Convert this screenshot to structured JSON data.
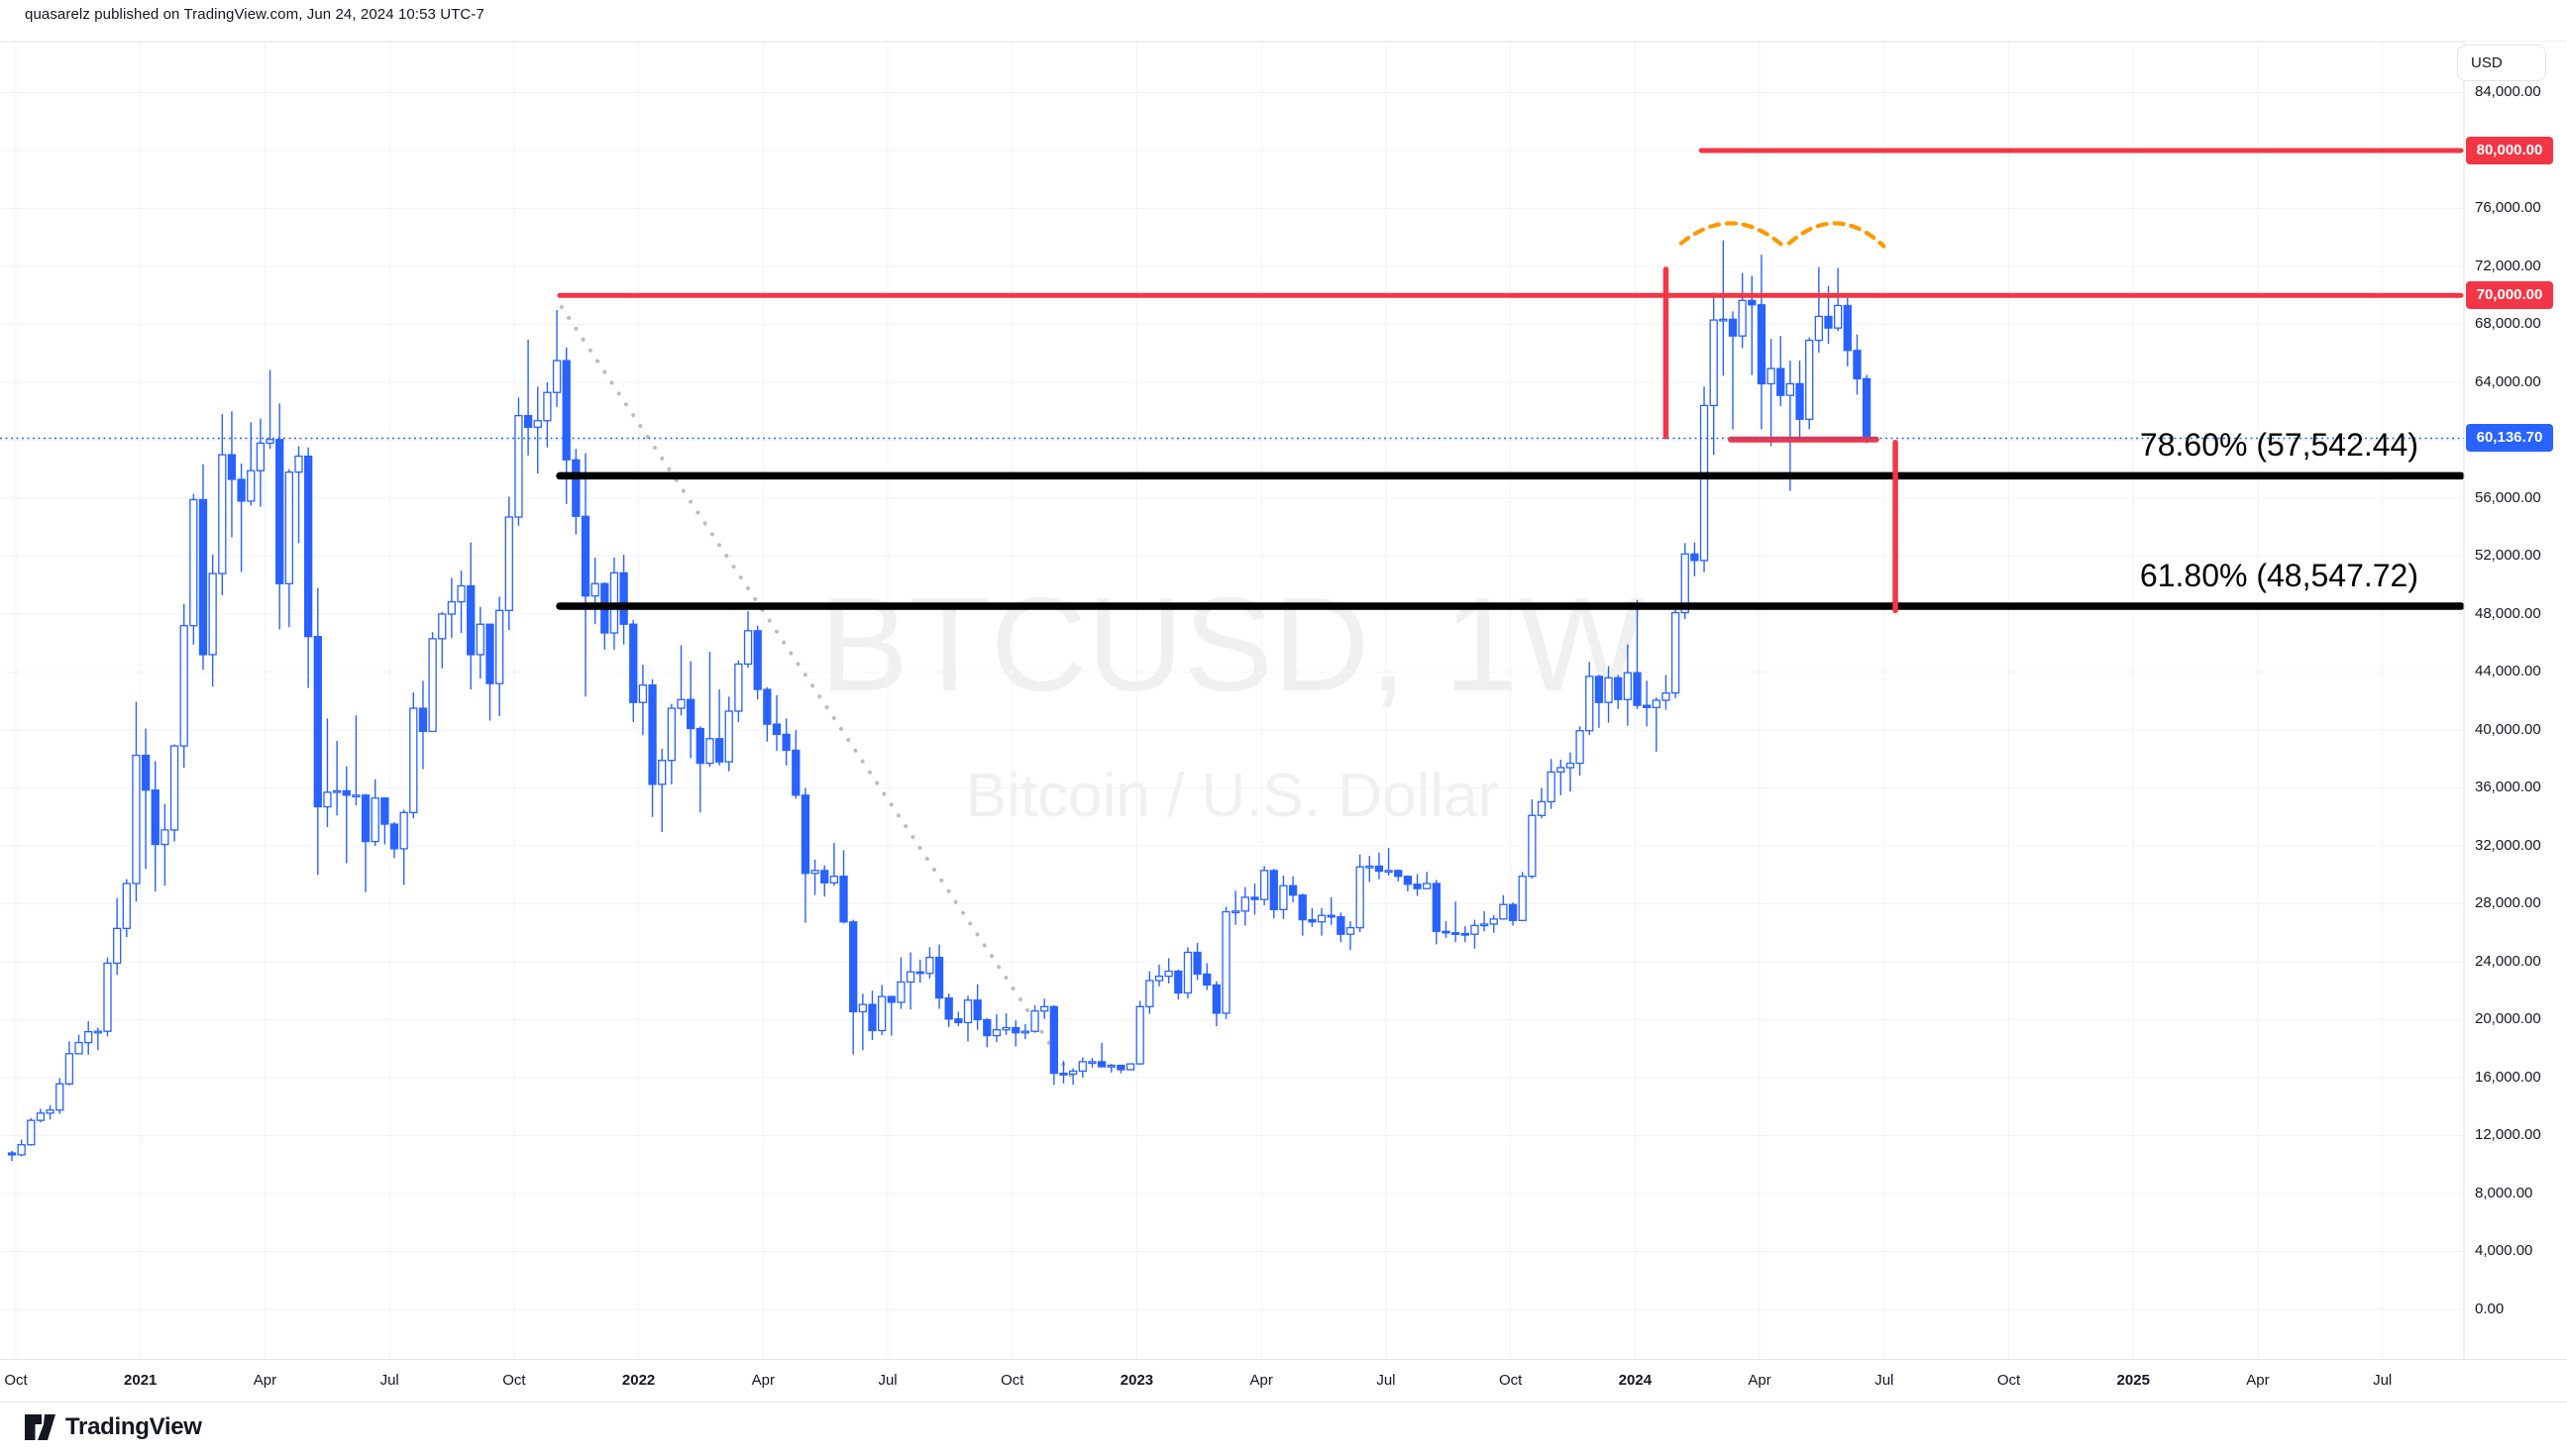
{
  "header": {
    "publish_line": "quasarelz published on TradingView.com, Jun 24, 2024 10:53 UTC-7"
  },
  "watermark": {
    "line1": "BTCUSD, 1W",
    "line2": "Bitcoin / U.S. Dollar"
  },
  "logo": {
    "text": "TradingView"
  },
  "price_axis": {
    "currency_button": "USD",
    "tick_labels": [
      "84,000.00",
      "80,000.00",
      "76,000.00",
      "72,000.00",
      "68,000.00",
      "64,000.00",
      "60,000.00",
      "56,000.00",
      "52,000.00",
      "48,000.00",
      "44,000.00",
      "40,000.00",
      "36,000.00",
      "32,000.00",
      "28,000.00",
      "24,000.00",
      "20,000.00",
      "16,000.00",
      "12,000.00",
      "8,000.00",
      "4,000.00",
      "0.00"
    ],
    "tick_top_price": 84000,
    "tick_step": 4000,
    "level_80k_label": "80,000.00",
    "level_70k_label": "70,000.00",
    "current_price_label": "60,136.70"
  },
  "time_axis": {
    "labels": [
      {
        "text": "Oct",
        "year": false
      },
      {
        "text": "2021",
        "year": true
      },
      {
        "text": "Apr",
        "year": false
      },
      {
        "text": "Jul",
        "year": false
      },
      {
        "text": "Oct",
        "year": false
      },
      {
        "text": "2022",
        "year": true
      },
      {
        "text": "Apr",
        "year": false
      },
      {
        "text": "Jul",
        "year": false
      },
      {
        "text": "Oct",
        "year": false
      },
      {
        "text": "2023",
        "year": true
      },
      {
        "text": "Apr",
        "year": false
      },
      {
        "text": "Jul",
        "year": false
      },
      {
        "text": "Oct",
        "year": false
      },
      {
        "text": "2024",
        "year": true
      },
      {
        "text": "Apr",
        "year": false
      },
      {
        "text": "Jul",
        "year": false
      },
      {
        "text": "Oct",
        "year": false
      },
      {
        "text": "2025",
        "year": true
      },
      {
        "text": "Apr",
        "year": false
      },
      {
        "text": "Jul",
        "year": false
      }
    ]
  },
  "annotations": {
    "fib_786": {
      "label": "78.60% (57,542.44)",
      "price": 57542.44
    },
    "fib_618": {
      "label": "61.80% (48,547.72)",
      "price": 48547.72
    },
    "resistance_80k": {
      "price": 80000,
      "from_week": 176.7
    },
    "resistance_70k": {
      "price": 70000,
      "from_week": 57.3
    },
    "current_price": {
      "price": 60136.7
    },
    "projection_v1": {
      "week": 173,
      "from_price": 71800,
      "to_price": 60250
    },
    "projection_v2": {
      "week": 197,
      "from_price": 59850,
      "to_price": 48250
    },
    "support_segment": {
      "price": 60050,
      "from_week": 179.8,
      "to_week": 195
    },
    "trend_dotted": {
      "from_week": 57.5,
      "from_price": 69200,
      "to_week": 111,
      "to_price": 15900
    },
    "double_top_arcs": {
      "arc1_from_week": 174.6,
      "arc1_to_week": 185.3,
      "arc2_from_week": 185.9,
      "arc2_to_week": 195.8,
      "base_price": 73600,
      "peak_price": 75500
    }
  },
  "colors": {
    "accent_blue": "#2962ff",
    "alert_red": "#f23645",
    "drawing_black": "#000000",
    "arc_orange": "#ff9800",
    "grid": "#f0f3fa",
    "frame": "#e0e3eb",
    "text": "#131722",
    "trend_dots": "#b9bdc9",
    "candle_up_fill": "#ffffff",
    "candle_down_fill": "#2962ff"
  },
  "chart_data": {
    "type": "candlestick",
    "symbol": "BTCUSD",
    "interval": "1W",
    "title": "BTCUSD, 1W",
    "subtitle": "Bitcoin / U.S. Dollar",
    "grid": true,
    "ylim": [
      -3419,
      87521
    ],
    "y_tick_step": 4000,
    "x_tick_labels": [
      "Oct",
      "2021",
      "Apr",
      "Jul",
      "Oct",
      "2022",
      "Apr",
      "Jul",
      "Oct",
      "2023",
      "Apr",
      "Jul",
      "Oct",
      "2024",
      "Apr",
      "Jul",
      "Oct",
      "2025",
      "Apr",
      "Jul"
    ],
    "ohlc": [
      [
        10800,
        10950,
        10250,
        10670
      ],
      [
        10670,
        11720,
        10570,
        11370
      ],
      [
        11370,
        13200,
        11300,
        13050
      ],
      [
        13050,
        13850,
        12900,
        13550
      ],
      [
        13550,
        14100,
        13100,
        13760
      ],
      [
        13760,
        15970,
        13500,
        15570
      ],
      [
        15570,
        18500,
        15460,
        17650
      ],
      [
        17650,
        18960,
        17610,
        18420
      ],
      [
        18420,
        19900,
        17580,
        19170
      ],
      [
        19170,
        19450,
        17900,
        19200
      ],
      [
        19200,
        24300,
        18850,
        23900
      ],
      [
        23900,
        28400,
        23100,
        26300
      ],
      [
        26300,
        29700,
        25700,
        29400
      ],
      [
        29400,
        41950,
        28150,
        38250
      ],
      [
        38250,
        40100,
        30400,
        35850
      ],
      [
        35850,
        37850,
        28850,
        32100
      ],
      [
        32100,
        34900,
        29250,
        33100
      ],
      [
        33100,
        39000,
        32300,
        38900
      ],
      [
        38900,
        48700,
        37400,
        47200
      ],
      [
        47200,
        56300,
        45900,
        55900
      ],
      [
        55900,
        58350,
        44150,
        45200
      ],
      [
        45200,
        52100,
        43000,
        50800
      ],
      [
        50800,
        61800,
        49300,
        59000
      ],
      [
        59000,
        62000,
        53300,
        57300
      ],
      [
        57300,
        58400,
        50900,
        55800
      ],
      [
        55800,
        61250,
        55500,
        57900
      ],
      [
        57900,
        61500,
        55400,
        59800
      ],
      [
        59800,
        64850,
        59400,
        60050
      ],
      [
        60050,
        62550,
        46950,
        50100
      ],
      [
        50100,
        58000,
        47100,
        57800
      ],
      [
        57800,
        59600,
        52900,
        58900
      ],
      [
        58900,
        59500,
        42900,
        46450
      ],
      [
        46450,
        49800,
        30000,
        34700
      ],
      [
        34700,
        40800,
        33300,
        35700
      ],
      [
        35700,
        39250,
        34100,
        35800
      ],
      [
        35800,
        37500,
        30800,
        35500
      ],
      [
        35500,
        41000,
        34800,
        35500
      ],
      [
        35500,
        35600,
        28800,
        32300
      ],
      [
        32300,
        36600,
        32000,
        35300
      ],
      [
        35300,
        35350,
        32100,
        33500
      ],
      [
        33500,
        33650,
        31150,
        31800
      ],
      [
        31800,
        34500,
        29300,
        34300
      ],
      [
        34300,
        42600,
        33900,
        41500
      ],
      [
        41500,
        43400,
        37300,
        39900
      ],
      [
        39900,
        46750,
        39900,
        46300
      ],
      [
        46300,
        48150,
        44250,
        48000
      ],
      [
        48000,
        50500,
        46350,
        48850
      ],
      [
        48850,
        51000,
        46700,
        49950
      ],
      [
        49950,
        52950,
        42800,
        45200
      ],
      [
        45200,
        48500,
        43550,
        47300
      ],
      [
        47300,
        47350,
        40650,
        43200
      ],
      [
        43200,
        49200,
        40950,
        48250
      ],
      [
        48250,
        56100,
        46900,
        54700
      ],
      [
        54700,
        62950,
        54100,
        61700
      ],
      [
        61700,
        66950,
        58950,
        60900
      ],
      [
        60900,
        63700,
        57700,
        61350
      ],
      [
        61350,
        64000,
        59500,
        63300
      ],
      [
        63300,
        69000,
        62300,
        65500
      ],
      [
        65500,
        66400,
        55600,
        58650
      ],
      [
        58650,
        59400,
        53500,
        54750
      ],
      [
        54750,
        59100,
        42300,
        49250
      ],
      [
        49250,
        51900,
        47300,
        50100
      ],
      [
        50100,
        50200,
        45550,
        46700
      ],
      [
        46700,
        51900,
        45550,
        50850
      ],
      [
        50850,
        52100,
        45900,
        47300
      ],
      [
        47300,
        47600,
        40550,
        41900
      ],
      [
        41900,
        44500,
        39650,
        43100
      ],
      [
        43100,
        43500,
        34000,
        36250
      ],
      [
        36250,
        38700,
        32950,
        37900
      ],
      [
        37900,
        41800,
        36250,
        41500
      ],
      [
        41500,
        45850,
        41000,
        42100
      ],
      [
        42100,
        44750,
        38050,
        40100
      ],
      [
        40100,
        40250,
        34300,
        37700
      ],
      [
        37700,
        45400,
        37450,
        39400
      ],
      [
        39400,
        42800,
        37550,
        37800
      ],
      [
        37800,
        42300,
        37150,
        41300
      ],
      [
        41300,
        44800,
        40550,
        44550
      ],
      [
        44550,
        48200,
        44300,
        46850
      ],
      [
        46850,
        47200,
        42100,
        42800
      ],
      [
        42800,
        42950,
        39200,
        40400
      ],
      [
        40400,
        42400,
        38550,
        39700
      ],
      [
        39700,
        40800,
        37550,
        38600
      ],
      [
        38600,
        40000,
        35250,
        35500
      ],
      [
        35500,
        36000,
        26700,
        30100
      ],
      [
        30100,
        31050,
        28600,
        30300
      ],
      [
        30300,
        30650,
        28500,
        29450
      ],
      [
        29450,
        32200,
        29250,
        29900
      ],
      [
        29900,
        31700,
        26650,
        26750
      ],
      [
        26750,
        26900,
        17600,
        20550
      ],
      [
        20550,
        21800,
        17900,
        21050
      ],
      [
        21050,
        22000,
        18600,
        19250
      ],
      [
        19250,
        22400,
        18950,
        21600
      ],
      [
        21600,
        21650,
        18900,
        21200
      ],
      [
        21200,
        24300,
        20750,
        22600
      ],
      [
        22600,
        24650,
        20700,
        23300
      ],
      [
        23300,
        24150,
        22550,
        23200
      ],
      [
        23200,
        25000,
        22850,
        24300
      ],
      [
        24300,
        25200,
        20750,
        21500
      ],
      [
        21500,
        21800,
        19500,
        20050
      ],
      [
        20050,
        20550,
        19550,
        19800
      ],
      [
        19800,
        21650,
        18500,
        21350
      ],
      [
        21350,
        22450,
        19300,
        20000
      ],
      [
        20000,
        20100,
        18100,
        18900
      ],
      [
        18900,
        20380,
        18450,
        19300
      ],
      [
        19300,
        20450,
        18950,
        19450
      ],
      [
        19450,
        19950,
        18150,
        19100
      ],
      [
        19100,
        19700,
        18650,
        19200
      ],
      [
        19200,
        21000,
        19100,
        20600
      ],
      [
        20600,
        21450,
        20050,
        20900
      ],
      [
        20900,
        21000,
        15500,
        16300
      ],
      [
        16300,
        17150,
        15600,
        16250
      ],
      [
        16250,
        16650,
        15500,
        16450
      ],
      [
        16450,
        17400,
        16000,
        17100
      ],
      [
        17100,
        17350,
        16700,
        17100
      ],
      [
        17100,
        18400,
        16900,
        16750
      ],
      [
        16750,
        16950,
        16350,
        16850
      ],
      [
        16850,
        16850,
        16300,
        16550
      ],
      [
        16550,
        17000,
        16500,
        16950
      ],
      [
        16950,
        21300,
        16900,
        20900
      ],
      [
        20900,
        23350,
        20400,
        22700
      ],
      [
        22700,
        23800,
        22300,
        23000
      ],
      [
        23000,
        24250,
        22500,
        23350
      ],
      [
        23350,
        23450,
        21400,
        21850
      ],
      [
        21850,
        25000,
        21450,
        24650
      ],
      [
        24650,
        25300,
        22750,
        23150
      ],
      [
        23150,
        23900,
        22050,
        22400
      ],
      [
        22400,
        22650,
        19550,
        20450
      ],
      [
        20450,
        27800,
        20050,
        27450
      ],
      [
        27450,
        28900,
        26550,
        27500
      ],
      [
        27500,
        29150,
        26500,
        28450
      ],
      [
        28450,
        29400,
        27250,
        28300
      ],
      [
        28300,
        30600,
        27900,
        30300
      ],
      [
        30300,
        30400,
        27000,
        27600
      ],
      [
        27600,
        29950,
        26950,
        29250
      ],
      [
        29250,
        29900,
        28100,
        28600
      ],
      [
        28600,
        28700,
        25800,
        26900
      ],
      [
        26900,
        27700,
        26400,
        26750
      ],
      [
        26750,
        27700,
        25800,
        27200
      ],
      [
        27200,
        28450,
        26550,
        27100
      ],
      [
        27100,
        27400,
        25350,
        25900
      ],
      [
        25900,
        26800,
        24800,
        26350
      ],
      [
        26350,
        31400,
        26050,
        30550
      ],
      [
        30550,
        31300,
        29500,
        30600
      ],
      [
        30600,
        31550,
        29700,
        30250
      ],
      [
        30250,
        31850,
        29950,
        30300
      ],
      [
        30300,
        30350,
        29550,
        29900
      ],
      [
        29900,
        29950,
        28850,
        29350
      ],
      [
        29350,
        30050,
        28550,
        29050
      ],
      [
        29050,
        30200,
        29000,
        29400
      ],
      [
        29400,
        29650,
        25200,
        26100
      ],
      [
        26100,
        26800,
        25650,
        26000
      ],
      [
        26000,
        28150,
        25350,
        25950
      ],
      [
        25950,
        26450,
        25350,
        25900
      ],
      [
        25900,
        26900,
        24900,
        26500
      ],
      [
        26500,
        27500,
        26100,
        26600
      ],
      [
        26600,
        27200,
        26000,
        26950
      ],
      [
        26950,
        28600,
        26900,
        27950
      ],
      [
        27950,
        28100,
        26500,
        26850
      ],
      [
        26850,
        30200,
        26800,
        29900
      ],
      [
        29900,
        35200,
        29750,
        34100
      ],
      [
        34100,
        36000,
        33900,
        35050
      ],
      [
        35050,
        38000,
        34550,
        37100
      ],
      [
        37100,
        37950,
        35500,
        37400
      ],
      [
        37400,
        38450,
        35750,
        37700
      ],
      [
        37700,
        40250,
        36850,
        39950
      ],
      [
        39950,
        44700,
        39650,
        43700
      ],
      [
        43700,
        43800,
        40150,
        41900
      ],
      [
        41900,
        44400,
        40500,
        43600
      ],
      [
        43600,
        43800,
        41450,
        42100
      ],
      [
        42100,
        45900,
        40300,
        43950
      ],
      [
        43950,
        48970,
        41450,
        41700
      ],
      [
        41700,
        43400,
        40250,
        41550
      ],
      [
        41550,
        42250,
        38500,
        42050
      ],
      [
        42050,
        43800,
        41400,
        42550
      ],
      [
        42550,
        48600,
        42200,
        48100
      ],
      [
        48100,
        52900,
        47650,
        52150
      ],
      [
        52150,
        52950,
        50600,
        51700
      ],
      [
        51700,
        63700,
        50900,
        62400
      ],
      [
        62400,
        70200,
        59000,
        68300
      ],
      [
        68300,
        73800,
        64450,
        68350
      ],
      [
        68350,
        68900,
        60750,
        67200
      ],
      [
        67200,
        71550,
        66350,
        69650
      ],
      [
        69650,
        71350,
        64500,
        69350
      ],
      [
        69350,
        72800,
        60750,
        63900
      ],
      [
        63900,
        67000,
        59600,
        64950
      ],
      [
        64950,
        67200,
        62350,
        63100
      ],
      [
        63100,
        65500,
        56500,
        63900
      ],
      [
        63900,
        65500,
        60150,
        61450
      ],
      [
        61450,
        67100,
        60750,
        66900
      ],
      [
        66900,
        71950,
        66050,
        68550
      ],
      [
        68550,
        70650,
        66650,
        67750
      ],
      [
        67750,
        71900,
        67550,
        69300
      ],
      [
        69300,
        69950,
        65100,
        66200
      ],
      [
        66200,
        67300,
        63150,
        64250
      ],
      [
        64250,
        64500,
        59800,
        60137
      ]
    ]
  }
}
